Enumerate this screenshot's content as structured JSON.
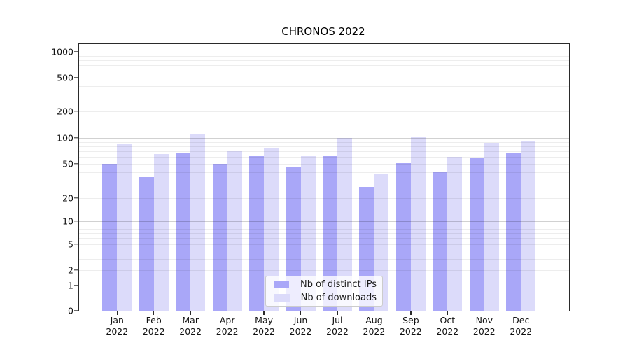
{
  "title": "CHRONOS 2022",
  "chart_data": {
    "type": "bar",
    "title": "CHRONOS 2022",
    "categories": [
      "Jan 2022",
      "Feb 2022",
      "Mar 2022",
      "Apr 2022",
      "May 2022",
      "Jun 2022",
      "Jul 2022",
      "Aug 2022",
      "Sep 2022",
      "Oct 2022",
      "Nov 2022",
      "Dec 2022"
    ],
    "series": [
      {
        "name": "Nb of distinct IPs",
        "color": "#a9a7f8",
        "values": [
          50,
          35,
          68,
          50,
          62,
          46,
          62,
          27,
          51,
          41,
          58,
          67
        ]
      },
      {
        "name": "Nb of downloads",
        "color": "#dcdbfa",
        "values": [
          84,
          65,
          112,
          71,
          77,
          61,
          100,
          38,
          104,
          60,
          88,
          92
        ]
      }
    ],
    "xlabel": "",
    "ylabel": "",
    "yscale": "symlog",
    "ylim": [
      0,
      1200
    ],
    "yticks": [
      0,
      1,
      2,
      5,
      10,
      20,
      50,
      100,
      200,
      500,
      1000
    ],
    "grid": true,
    "legend_position": "lower center"
  }
}
